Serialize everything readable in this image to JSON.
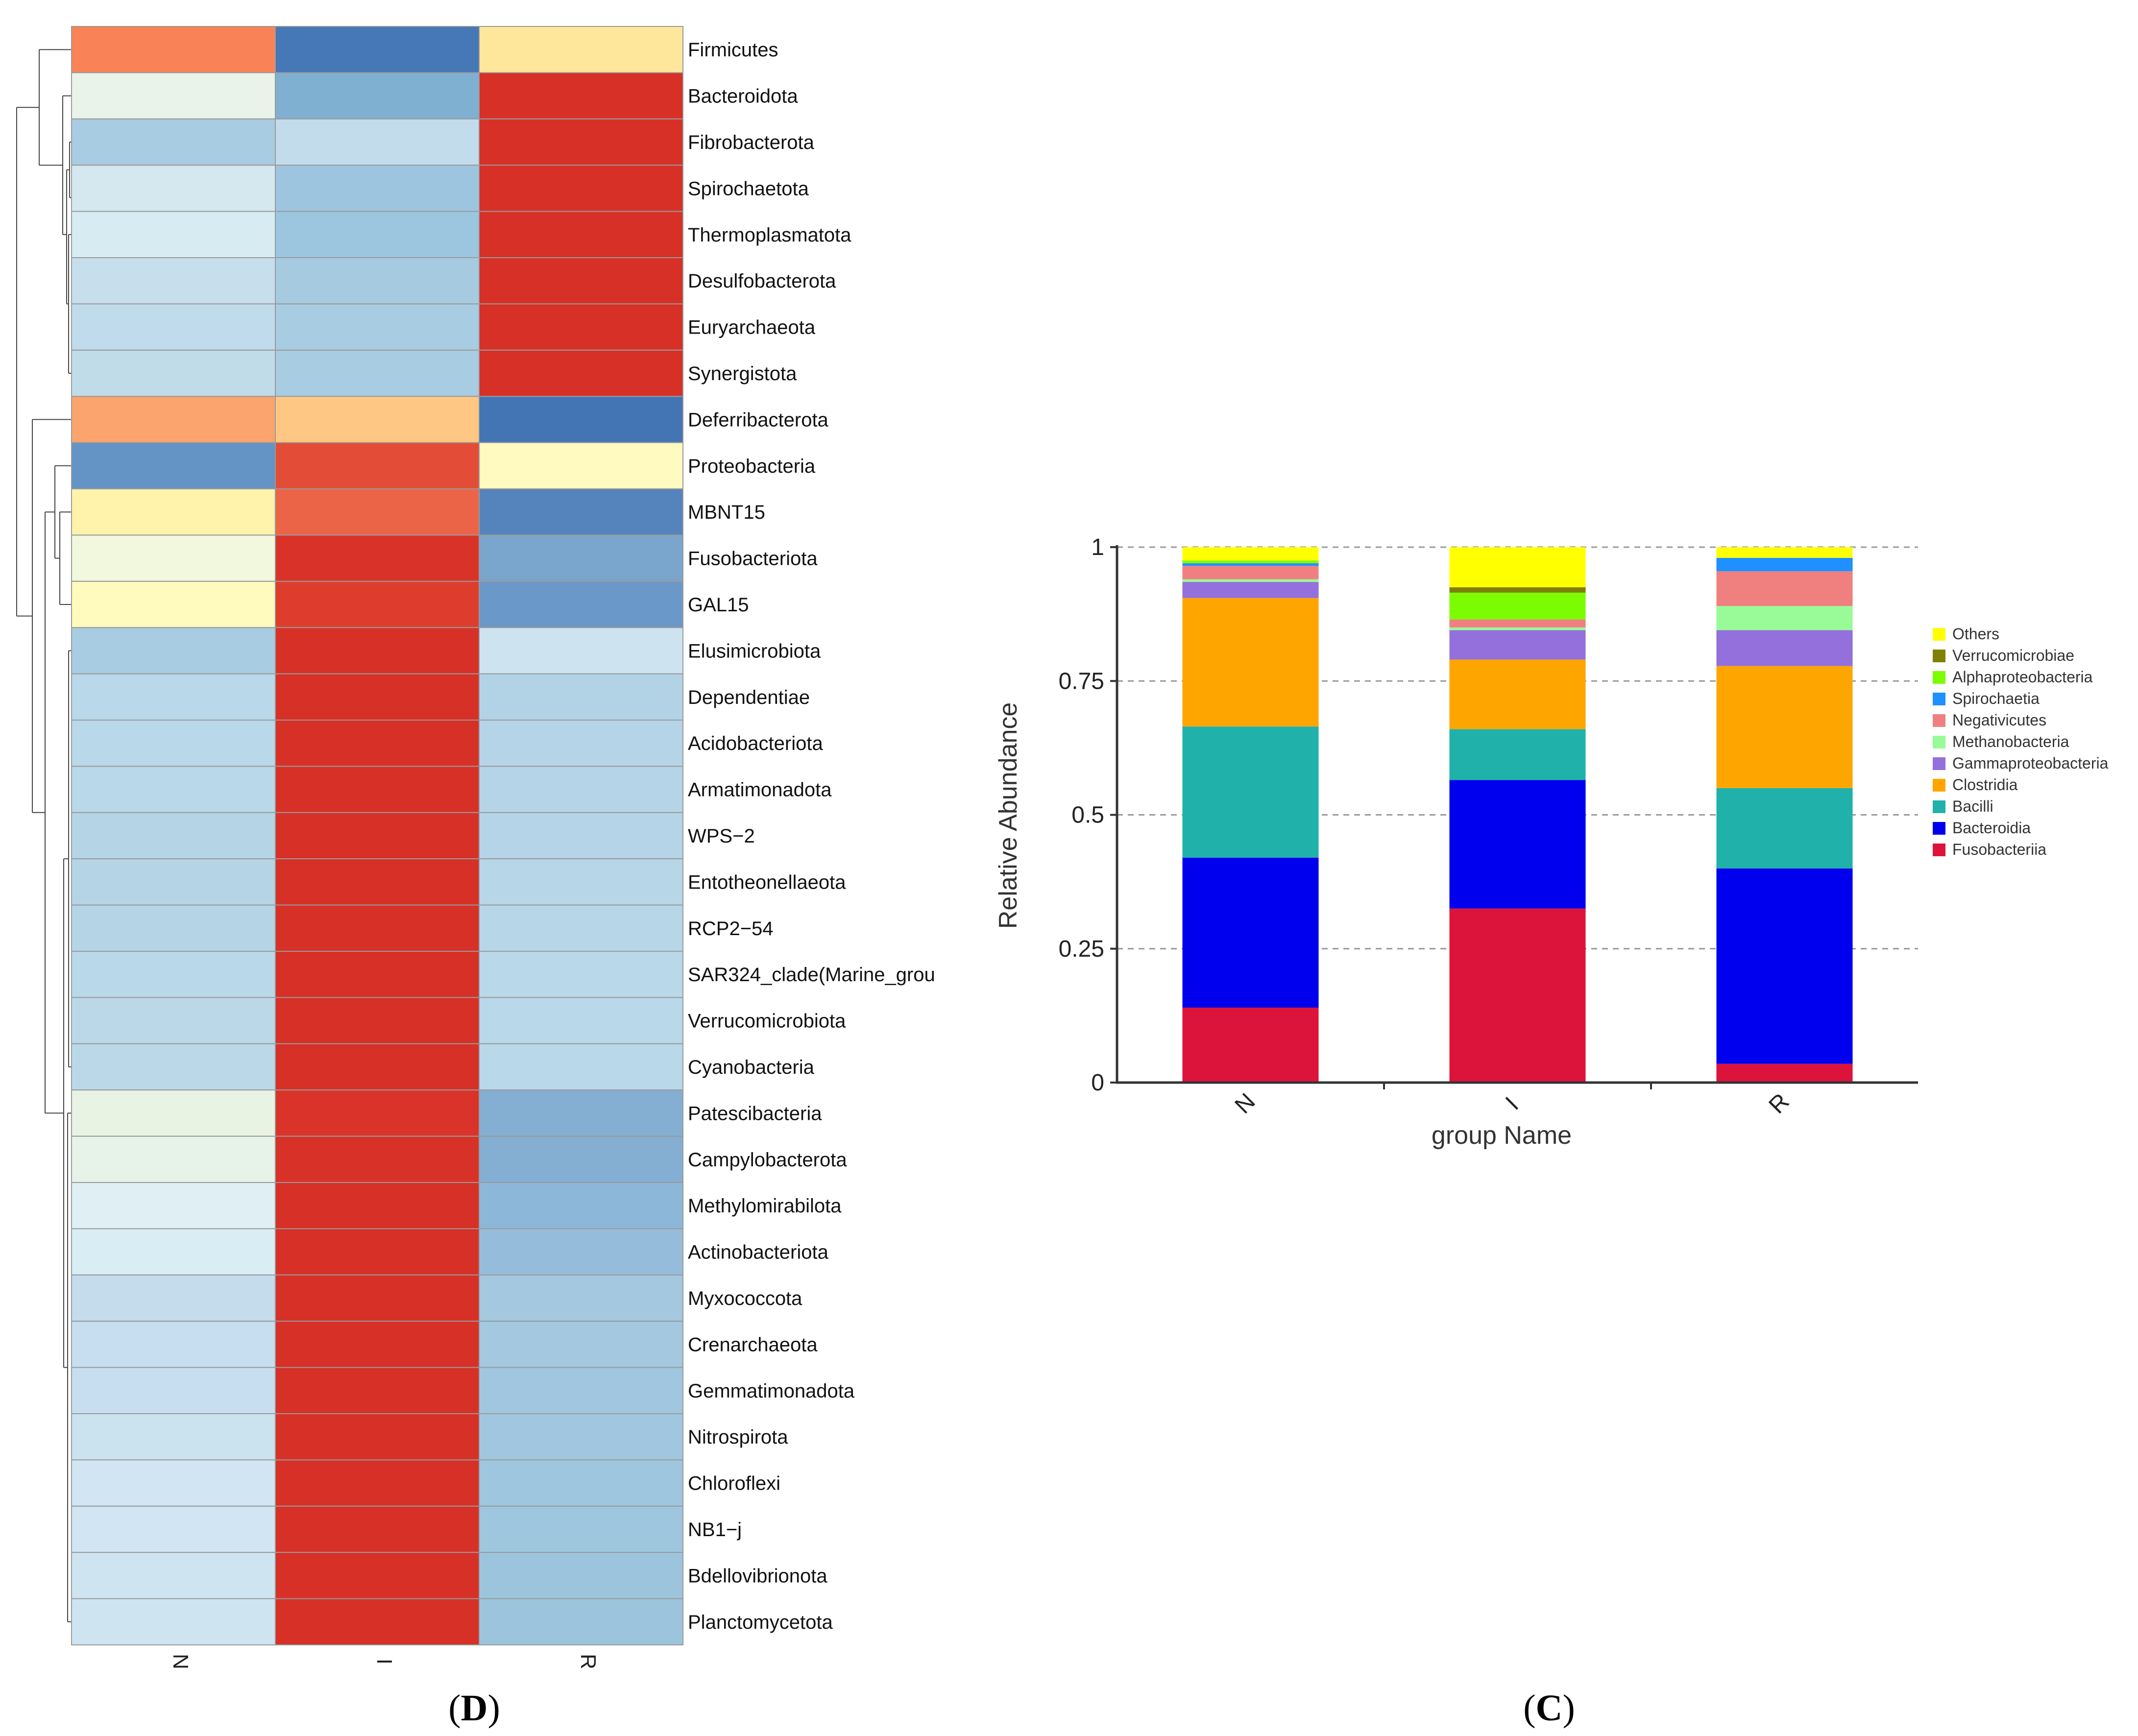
{
  "panels": {
    "left_label": {
      "open": "(",
      "letter": "D",
      "close": ")"
    },
    "right_label": {
      "open": "(",
      "letter": "C",
      "close": ")"
    }
  },
  "chart_data": [
    {
      "type": "heatmap",
      "columns": [
        "N",
        "I",
        "R"
      ],
      "rows": [
        "Firmicutes",
        "Bacteroidota",
        "Fibrobacterota",
        "Spirochaetota",
        "Thermoplasmatota",
        "Desulfobacterota",
        "Euryarchaeota",
        "Synergistota",
        "Deferribacterota",
        "Proteobacteria",
        "MBNT15",
        "Fusobacteriota",
        "GAL15",
        "Elusimicrobiota",
        "Dependentiae",
        "Acidobacteriota",
        "Armatimonadota",
        "WPS−2",
        "Entotheonellaeota",
        "RCP2−54",
        "SAR324_clade(Marine_grou",
        "Verrucomicrobiota",
        "Cyanobacteria",
        "Patescibacteria",
        "Campylobacterota",
        "Methylomirabilota",
        "Actinobacteriota",
        "Myxococcota",
        "Crenarchaeota",
        "Gemmatimonadota",
        "Nitrospirota",
        "Chloroflexi",
        "NB1−j",
        "Bdellovibrionota",
        "Planctomycetota"
      ],
      "colors": [
        [
          "#f98357",
          "#4677b6",
          "#fee79b"
        ],
        [
          "#e9f3e9",
          "#7fafd1",
          "#d73027"
        ],
        [
          "#a8cce1",
          "#c3dcec",
          "#d73027"
        ],
        [
          "#d5e8f0",
          "#9dc5df",
          "#d73027"
        ],
        [
          "#d7ebf2",
          "#9cc5df",
          "#d73027"
        ],
        [
          "#c7deec",
          "#a6cbe1",
          "#d73027"
        ],
        [
          "#c0dbeb",
          "#a8cce1",
          "#d73027"
        ],
        [
          "#c0dce8",
          "#a8cce1",
          "#d73027"
        ],
        [
          "#fba46d",
          "#fec884",
          "#4375b5"
        ],
        [
          "#6494c6",
          "#e34d37",
          "#fefac0"
        ],
        [
          "#fff2ab",
          "#eb6448",
          "#5584bd"
        ],
        [
          "#f1f8dd",
          "#d93229",
          "#7aa5cc"
        ],
        [
          "#fffbbe",
          "#de3d2e",
          "#6a98c8"
        ],
        [
          "#a8cce1",
          "#d73027",
          "#cde3ef"
        ],
        [
          "#b9d8e9",
          "#d73027",
          "#b2d3e6"
        ],
        [
          "#b9d8e9",
          "#d73027",
          "#b5d4e7"
        ],
        [
          "#b9d8e9",
          "#d73027",
          "#b5d4e7"
        ],
        [
          "#b5d5e7",
          "#d73027",
          "#b5d4e7"
        ],
        [
          "#b5d5e7",
          "#d73027",
          "#b7d6e8"
        ],
        [
          "#b5d5e7",
          "#d73027",
          "#b7d6e8"
        ],
        [
          "#b9d8e9",
          "#d73027",
          "#b9d8e9"
        ],
        [
          "#bbd8e9",
          "#d73027",
          "#b9d8e9"
        ],
        [
          "#bbd8e9",
          "#d73027",
          "#b9d8e9"
        ],
        [
          "#e9f3e3",
          "#da342a",
          "#84aed2"
        ],
        [
          "#e7f2e9",
          "#d83128",
          "#84aed2"
        ],
        [
          "#e0eff4",
          "#d73027",
          "#8db7d8"
        ],
        [
          "#d9edf4",
          "#d73027",
          "#95bddb"
        ],
        [
          "#c4dcec",
          "#d73027",
          "#a3c8df"
        ],
        [
          "#c7def0",
          "#d73027",
          "#a3c8df"
        ],
        [
          "#c7def0",
          "#d73027",
          "#a0c7df"
        ],
        [
          "#cbe2ef",
          "#d73027",
          "#a0c7df"
        ],
        [
          "#d1e6f2",
          "#d73027",
          "#9ec6de"
        ],
        [
          "#d1e6f2",
          "#d73027",
          "#9ec6de"
        ],
        [
          "#cfe4f1",
          "#d73027",
          "#9cc5dd"
        ],
        [
          "#cfe4f1",
          "#d73027",
          "#9cc5dd"
        ]
      ]
    },
    {
      "type": "bar",
      "stacked": true,
      "categories": [
        "N",
        "I",
        "R"
      ],
      "xlabel": "group Name",
      "ylabel": "Relative Abundance",
      "ylim": [
        0,
        1
      ],
      "yticks": [
        "0",
        "0.25",
        "0.5",
        "0.75",
        "1"
      ],
      "grid": "horizontal dashed",
      "legend_position": "right",
      "series": [
        {
          "name": "Fusobacteriia",
          "color": "#dc143c",
          "values": [
            0.14,
            0.325,
            0.035
          ]
        },
        {
          "name": "Bacteroidia",
          "color": "#0000ee",
          "values": [
            0.28,
            0.24,
            0.365
          ]
        },
        {
          "name": "Bacilli",
          "color": "#20b2aa",
          "values": [
            0.245,
            0.095,
            0.15
          ]
        },
        {
          "name": "Clostridia",
          "color": "#ffa500",
          "values": [
            0.24,
            0.13,
            0.228
          ]
        },
        {
          "name": "Gammaproteobacteria",
          "color": "#9370db",
          "values": [
            0.03,
            0.055,
            0.067
          ]
        },
        {
          "name": "Methanobacteria",
          "color": "#98fb98",
          "values": [
            0.005,
            0.005,
            0.045
          ]
        },
        {
          "name": "Negativicutes",
          "color": "#f08080",
          "values": [
            0.025,
            0.015,
            0.065
          ]
        },
        {
          "name": "Spirochaetia",
          "color": "#1e90ff",
          "values": [
            0.005,
            0.0,
            0.025
          ]
        },
        {
          "name": "Alphaproteobacteria",
          "color": "#7cfc00",
          "values": [
            0.005,
            0.05,
            0.0
          ]
        },
        {
          "name": "Verrucomicrobiae",
          "color": "#808000",
          "values": [
            0.0,
            0.01,
            0.0
          ]
        },
        {
          "name": "Others",
          "color": "#ffff00",
          "values": [
            0.025,
            0.075,
            0.02
          ]
        }
      ]
    }
  ]
}
